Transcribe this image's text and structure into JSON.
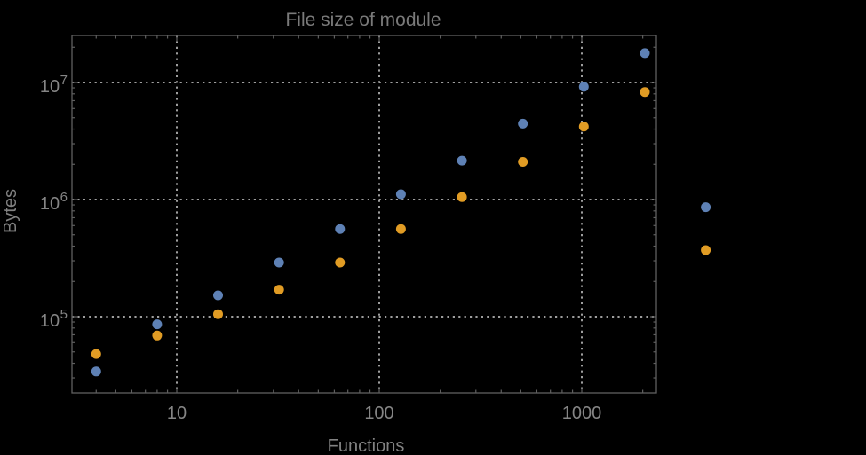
{
  "chart": {
    "title": "File size of module",
    "xlabel": "Functions",
    "ylabel": "Bytes"
  },
  "axes": {
    "x_tick_labels": [
      "10",
      "100",
      "1000"
    ],
    "y_tick_labels": [
      {
        "base": "10",
        "exp": "5"
      },
      {
        "base": "10",
        "exp": "6"
      },
      {
        "base": "10",
        "exp": "7"
      }
    ]
  },
  "colors": {
    "background": "#000000",
    "frame": "#5f5f5f",
    "gridlines": "#9e9e9e",
    "text": "#858585",
    "series_blue": "#5E81B5",
    "series_orange": "#E19C24"
  },
  "chart_data": {
    "type": "scatter",
    "title": "File size of module",
    "xlabel": "Functions",
    "ylabel": "Bytes",
    "x_scale": "log",
    "y_scale": "log",
    "grid": "dotted, major decades only",
    "legend": "none",
    "marker": "filled circle",
    "x_ticks": [
      10,
      100,
      1000
    ],
    "y_ticks": [
      100000,
      1000000,
      10000000
    ],
    "x_range": [
      3.05,
      2330
    ],
    "y_range": [
      22500,
      25000000
    ],
    "clipping": false,
    "x": [
      4,
      8,
      16,
      32,
      64,
      128,
      256,
      512,
      1024,
      2048,
      4096
    ],
    "series": [
      {
        "name": "blue",
        "color": "#5E81B5",
        "values": [
          34000,
          86000,
          152000,
          290000,
          560000,
          1110000,
          2150000,
          4450000,
          9200000,
          17800000,
          860000
        ]
      },
      {
        "name": "orange",
        "color": "#E19C24",
        "values": [
          48000,
          69000,
          105000,
          170000,
          290000,
          560000,
          1050000,
          2100000,
          4200000,
          8300000,
          370000
        ]
      }
    ]
  }
}
